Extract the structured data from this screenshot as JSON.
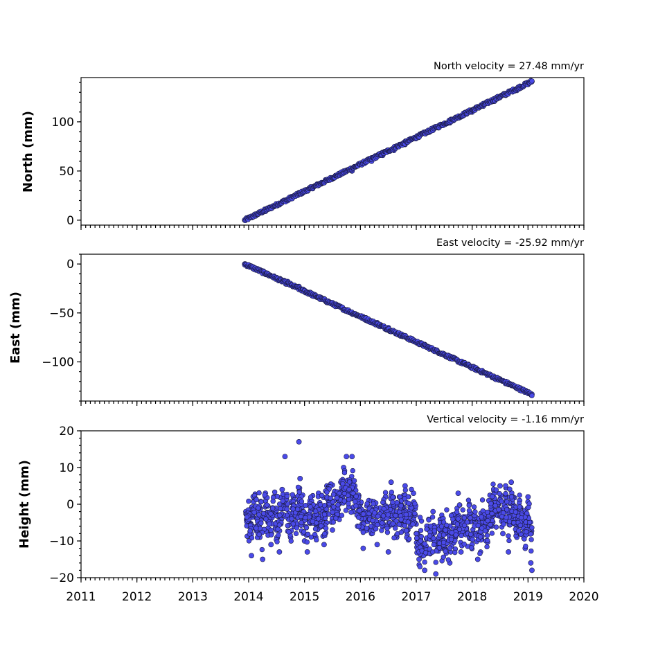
{
  "chart_data": [
    {
      "type": "scatter",
      "title": "North velocity = 27.48 mm/yr",
      "xlabel": "",
      "ylabel": "North (mm)",
      "xlim": [
        2011,
        2020
      ],
      "ylim": [
        -5,
        145
      ],
      "yticks": [
        0,
        50,
        100
      ],
      "ytick_labels": [
        "0",
        "50",
        "100"
      ],
      "x_start": 2013.93,
      "x_end": 2019.07,
      "velocity": 27.48,
      "color": "#4a4ae8",
      "points": [
        [
          2013.93,
          0
        ],
        [
          2014.1,
          4.5
        ],
        [
          2014.3,
          9
        ],
        [
          2014.5,
          15
        ],
        [
          2014.7,
          20
        ],
        [
          2014.9,
          28
        ],
        [
          2015.1,
          32
        ],
        [
          2015.3,
          37
        ],
        [
          2015.5,
          42
        ],
        [
          2015.7,
          48
        ],
        [
          2015.85,
          50
        ],
        [
          2016.0,
          57
        ],
        [
          2016.2,
          60
        ],
        [
          2016.4,
          66
        ],
        [
          2016.6,
          71
        ],
        [
          2016.8,
          77
        ],
        [
          2017.0,
          84
        ],
        [
          2017.2,
          89
        ],
        [
          2017.4,
          94
        ],
        [
          2017.6,
          99
        ],
        [
          2017.8,
          105
        ],
        [
          2018.0,
          110
        ],
        [
          2018.2,
          116
        ],
        [
          2018.4,
          121
        ],
        [
          2018.6,
          127
        ],
        [
          2018.8,
          132
        ],
        [
          2019.0,
          138
        ],
        [
          2019.07,
          141
        ]
      ]
    },
    {
      "type": "scatter",
      "title": "East velocity = -25.92 mm/yr",
      "xlabel": "",
      "ylabel": "East (mm)",
      "xlim": [
        2011,
        2020
      ],
      "ylim": [
        -140,
        10
      ],
      "yticks": [
        0,
        -50,
        -100
      ],
      "ytick_labels": [
        "0",
        "−50",
        "−100"
      ],
      "x_start": 2013.93,
      "x_end": 2019.07,
      "velocity": -25.92,
      "color": "#4a4ae8",
      "points": [
        [
          2013.93,
          0
        ],
        [
          2014.1,
          -4
        ],
        [
          2014.3,
          -9
        ],
        [
          2014.5,
          -14
        ],
        [
          2014.7,
          -18
        ],
        [
          2014.9,
          -23
        ],
        [
          2015.1,
          -29
        ],
        [
          2015.3,
          -35
        ],
        [
          2015.5,
          -40
        ],
        [
          2015.7,
          -46
        ],
        [
          2015.9,
          -51
        ],
        [
          2016.1,
          -55
        ],
        [
          2016.3,
          -60
        ],
        [
          2016.5,
          -65
        ],
        [
          2016.7,
          -71
        ],
        [
          2016.9,
          -76
        ],
        [
          2017.1,
          -82
        ],
        [
          2017.3,
          -87
        ],
        [
          2017.5,
          -92
        ],
        [
          2017.7,
          -97
        ],
        [
          2017.9,
          -103
        ],
        [
          2018.1,
          -108
        ],
        [
          2018.3,
          -113
        ],
        [
          2018.5,
          -118
        ],
        [
          2018.7,
          -123
        ],
        [
          2018.9,
          -128
        ],
        [
          2019.07,
          -133
        ]
      ]
    },
    {
      "type": "scatter",
      "title": "Vertical velocity = -1.16 mm/yr",
      "xlabel": "",
      "ylabel": "Height (mm)",
      "xlim": [
        2011,
        2020
      ],
      "ylim": [
        -20,
        20
      ],
      "yticks": [
        20,
        10,
        0,
        -10,
        -20
      ],
      "ytick_labels": [
        "20",
        "10",
        "0",
        "−10",
        "−20"
      ],
      "xticks": [
        2011,
        2012,
        2013,
        2014,
        2015,
        2016,
        2017,
        2018,
        2019,
        2020
      ],
      "xtick_labels": [
        "2011",
        "2012",
        "2013",
        "2014",
        "2015",
        "2016",
        "2017",
        "2018",
        "2019",
        "2020"
      ],
      "x_start": 2013.93,
      "x_end": 2019.07,
      "velocity": -1.16,
      "color": "#4a4ae8",
      "points": [
        [
          2013.95,
          -2
        ],
        [
          2014.0,
          -6
        ],
        [
          2014.05,
          -14
        ],
        [
          2014.1,
          1
        ],
        [
          2014.15,
          -4
        ],
        [
          2014.2,
          -9
        ],
        [
          2014.25,
          -15
        ],
        [
          2014.3,
          3
        ],
        [
          2014.35,
          -5
        ],
        [
          2014.4,
          -11
        ],
        [
          2014.45,
          2
        ],
        [
          2014.5,
          -7
        ],
        [
          2014.55,
          -13
        ],
        [
          2014.6,
          4
        ],
        [
          2014.65,
          13
        ],
        [
          2014.7,
          -3
        ],
        [
          2014.75,
          -9
        ],
        [
          2014.8,
          2
        ],
        [
          2014.85,
          -6
        ],
        [
          2014.9,
          17
        ],
        [
          2014.92,
          7
        ],
        [
          2014.95,
          -2
        ],
        [
          2015.0,
          -10
        ],
        [
          2015.05,
          -13
        ],
        [
          2015.1,
          1
        ],
        [
          2015.15,
          -5
        ],
        [
          2015.2,
          -9
        ],
        [
          2015.25,
          3
        ],
        [
          2015.3,
          -4
        ],
        [
          2015.35,
          -11
        ],
        [
          2015.4,
          5
        ],
        [
          2015.45,
          0
        ],
        [
          2015.5,
          -7
        ],
        [
          2015.55,
          3
        ],
        [
          2015.6,
          -3
        ],
        [
          2015.65,
          6
        ],
        [
          2015.7,
          10
        ],
        [
          2015.75,
          13
        ],
        [
          2015.8,
          2
        ],
        [
          2015.85,
          13
        ],
        [
          2015.9,
          5
        ],
        [
          2015.95,
          -6
        ],
        [
          2016.0,
          -2
        ],
        [
          2016.05,
          -12
        ],
        [
          2016.1,
          -4
        ],
        [
          2016.15,
          1
        ],
        [
          2016.2,
          -8
        ],
        [
          2016.25,
          -3
        ],
        [
          2016.3,
          -11
        ],
        [
          2016.35,
          -1
        ],
        [
          2016.4,
          -6
        ],
        [
          2016.45,
          2
        ],
        [
          2016.5,
          -13
        ],
        [
          2016.55,
          6
        ],
        [
          2016.6,
          -4
        ],
        [
          2016.65,
          -9
        ],
        [
          2016.7,
          2
        ],
        [
          2016.75,
          -2
        ],
        [
          2016.8,
          5
        ],
        [
          2016.85,
          -7
        ],
        [
          2016.9,
          -3
        ],
        [
          2016.95,
          3
        ],
        [
          2017.0,
          -8
        ],
        [
          2017.05,
          -15
        ],
        [
          2017.1,
          -11
        ],
        [
          2017.15,
          -18
        ],
        [
          2017.2,
          -6
        ],
        [
          2017.25,
          -13
        ],
        [
          2017.3,
          -2
        ],
        [
          2017.35,
          -19
        ],
        [
          2017.4,
          -10
        ],
        [
          2017.45,
          -4
        ],
        [
          2017.5,
          -12
        ],
        [
          2017.55,
          -7
        ],
        [
          2017.6,
          -16
        ],
        [
          2017.65,
          -3
        ],
        [
          2017.7,
          -9
        ],
        [
          2017.75,
          3
        ],
        [
          2017.8,
          -13
        ],
        [
          2017.85,
          -5
        ],
        [
          2017.9,
          -8
        ],
        [
          2017.95,
          0
        ],
        [
          2018.0,
          -11
        ],
        [
          2018.05,
          -4
        ],
        [
          2018.1,
          -15
        ],
        [
          2018.15,
          -7
        ],
        [
          2018.2,
          -2
        ],
        [
          2018.25,
          -10
        ],
        [
          2018.3,
          1
        ],
        [
          2018.35,
          -6
        ],
        [
          2018.4,
          3
        ],
        [
          2018.45,
          -3
        ],
        [
          2018.5,
          5
        ],
        [
          2018.55,
          -8
        ],
        [
          2018.6,
          2
        ],
        [
          2018.65,
          -13
        ],
        [
          2018.7,
          6
        ],
        [
          2018.75,
          -4
        ],
        [
          2018.8,
          -9
        ],
        [
          2018.85,
          1
        ],
        [
          2018.9,
          -6
        ],
        [
          2018.95,
          -12
        ],
        [
          2019.0,
          2
        ],
        [
          2019.03,
          -8
        ],
        [
          2019.05,
          -16
        ],
        [
          2019.07,
          -18
        ]
      ]
    }
  ]
}
